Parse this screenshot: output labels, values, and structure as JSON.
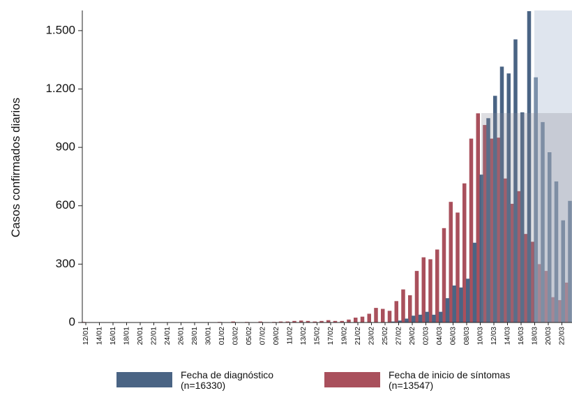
{
  "chart_data": {
    "type": "bar",
    "y_label": "Casos confirmados diarios",
    "categories": [
      "12/01",
      null,
      "14/01",
      null,
      "16/01",
      null,
      "18/01",
      null,
      "20/01",
      null,
      "22/01",
      null,
      "24/01",
      null,
      "26/01",
      null,
      "28/01",
      null,
      "30/01",
      null,
      "01/02",
      null,
      "03/02",
      null,
      "05/02",
      null,
      "07/02",
      null,
      "09/02",
      null,
      "11/02",
      null,
      "13/02",
      null,
      "15/02",
      null,
      "17/02",
      null,
      "19/02",
      null,
      "21/02",
      null,
      "23/02",
      null,
      "25/02",
      null,
      "27/02",
      null,
      "29/02",
      null,
      "02/03",
      null,
      "04/03",
      null,
      "06/03",
      null,
      "08/03",
      null,
      "10/03",
      null,
      "12/03",
      null,
      "14/03",
      null,
      "16/03",
      null,
      "18/03",
      null,
      "20/03",
      null,
      "22/03",
      null
    ],
    "series": [
      {
        "name": "Fecha de diagnóstico",
        "note": "(n=16330)",
        "color": "#4a6484",
        "values": [
          0,
          0,
          0,
          0,
          0,
          0,
          0,
          0,
          0,
          0,
          0,
          0,
          0,
          0,
          0,
          0,
          0,
          0,
          0,
          0,
          0,
          0,
          0,
          0,
          0,
          0,
          0,
          0,
          0,
          0,
          0,
          0,
          0,
          0,
          0,
          0,
          0,
          0,
          0,
          0,
          0,
          0,
          0,
          0,
          0,
          5,
          10,
          20,
          35,
          40,
          55,
          40,
          55,
          125,
          190,
          180,
          225,
          410,
          760,
          1050,
          1165,
          1315,
          1280,
          1455,
          1080,
          1600,
          1260,
          1030,
          875,
          725,
          525,
          625
        ]
      },
      {
        "name": "Fecha de inicio de síntomas",
        "note": "(n=13547)",
        "color": "#a9505c",
        "values": [
          3,
          0,
          0,
          0,
          0,
          0,
          0,
          0,
          0,
          0,
          0,
          0,
          0,
          0,
          0,
          0,
          0,
          0,
          0,
          0,
          3,
          0,
          5,
          0,
          3,
          0,
          5,
          2,
          3,
          5,
          5,
          8,
          10,
          8,
          5,
          8,
          12,
          8,
          8,
          15,
          25,
          30,
          45,
          75,
          70,
          60,
          110,
          170,
          140,
          265,
          335,
          325,
          375,
          485,
          620,
          565,
          715,
          945,
          1075,
          1015,
          945,
          950,
          740,
          610,
          675,
          455,
          415,
          300,
          265,
          130,
          115,
          205
        ]
      }
    ],
    "ylim": [
      0,
      1600
    ],
    "yticks": [
      0,
      300,
      600,
      900,
      {
        "value": 1200,
        "label": "1.200"
      },
      {
        "value": 1500,
        "label": "1.500"
      }
    ]
  }
}
